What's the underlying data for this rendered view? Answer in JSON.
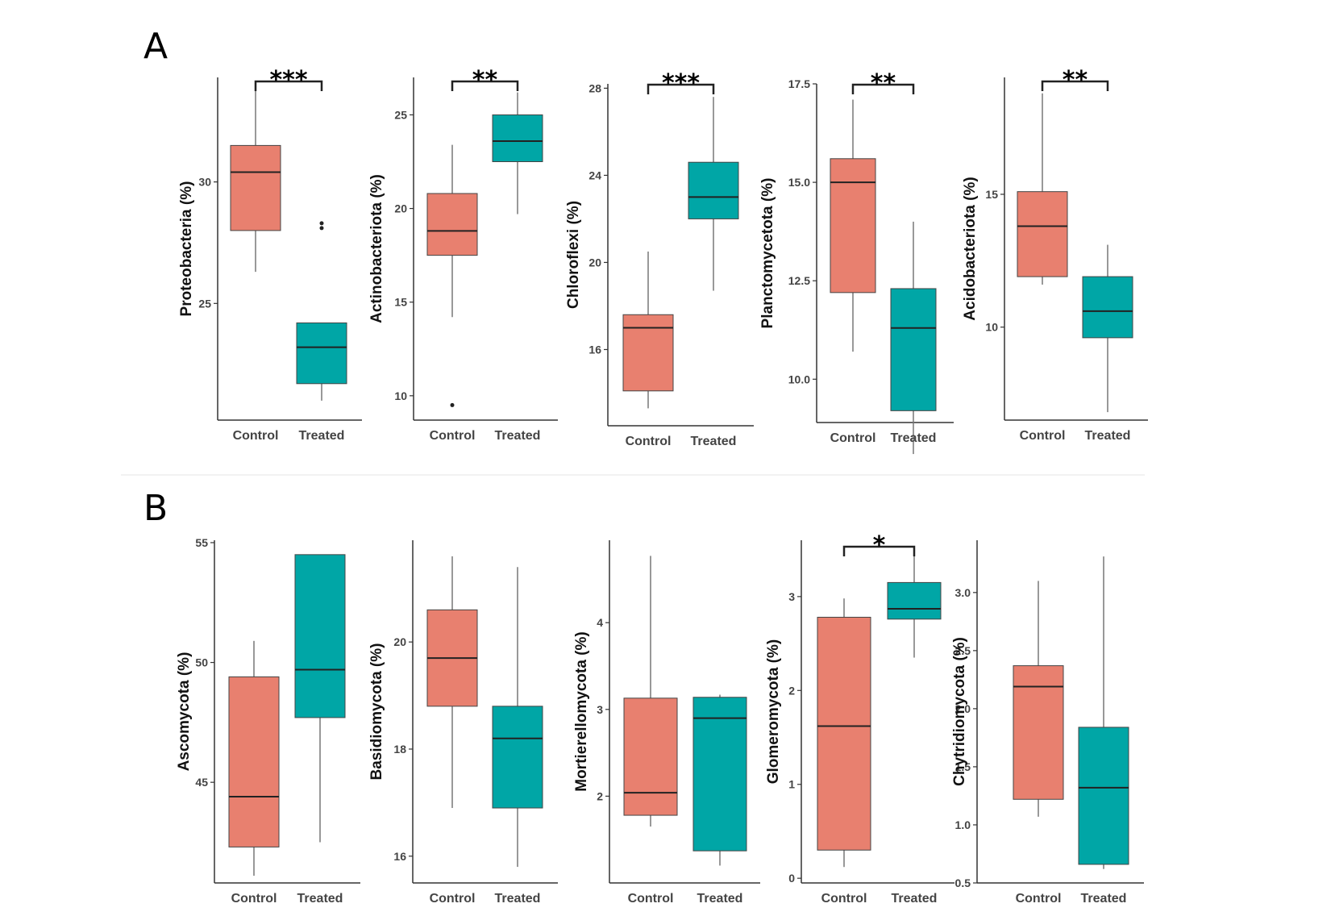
{
  "panels": [
    {
      "label": "A"
    },
    {
      "label": "B"
    }
  ],
  "chart_data": [
    {
      "type": "box",
      "panel": "A",
      "ylabel": "Proteobacteria (%)",
      "categories": [
        "Control",
        "Treated"
      ],
      "yticks": [
        25,
        30
      ],
      "ylim": [
        20.2,
        34.3
      ],
      "boxes": [
        {
          "category": "Control",
          "fill": "#e8806f",
          "whisker_low": 26.3,
          "q1": 28.0,
          "median": 30.4,
          "q3": 31.5,
          "whisker_high": 33.9,
          "outliers": []
        },
        {
          "category": "Treated",
          "fill": "#00a6a6",
          "whisker_low": 21.0,
          "q1": 21.7,
          "median": 23.2,
          "q3": 24.2,
          "whisker_high": 24.2,
          "outliers": [
            28.1,
            28.3
          ]
        }
      ],
      "significance": "***"
    },
    {
      "type": "box",
      "panel": "A",
      "ylabel": "Actinobacteriota (%)",
      "categories": [
        "Control",
        "Treated"
      ],
      "yticks": [
        10,
        15,
        20,
        25
      ],
      "ylim": [
        8.7,
        27.0
      ],
      "boxes": [
        {
          "category": "Control",
          "fill": "#e8806f",
          "whisker_low": 14.2,
          "q1": 17.5,
          "median": 18.8,
          "q3": 20.8,
          "whisker_high": 23.4,
          "outliers": [
            9.5
          ]
        },
        {
          "category": "Treated",
          "fill": "#00a6a6",
          "whisker_low": 19.7,
          "q1": 22.5,
          "median": 23.6,
          "q3": 25.0,
          "whisker_high": 26.2,
          "outliers": []
        }
      ],
      "significance": "**"
    },
    {
      "type": "box",
      "panel": "A",
      "ylabel": "Chloroflexi (%)",
      "categories": [
        "Control",
        "Treated"
      ],
      "yticks": [
        16,
        20,
        24,
        28
      ],
      "ylim": [
        12.5,
        28.2
      ],
      "boxes": [
        {
          "category": "Control",
          "fill": "#e8806f",
          "whisker_low": 13.3,
          "q1": 14.1,
          "median": 17.0,
          "q3": 17.6,
          "whisker_high": 20.5,
          "outliers": []
        },
        {
          "category": "Treated",
          "fill": "#00a6a6",
          "whisker_low": 18.7,
          "q1": 22.0,
          "median": 23.0,
          "q3": 24.6,
          "whisker_high": 27.6,
          "outliers": []
        }
      ],
      "significance": "***"
    },
    {
      "type": "box",
      "panel": "A",
      "ylabel": "Planctomycetota (%)",
      "categories": [
        "Control",
        "Treated"
      ],
      "yticks": [
        "10.0",
        "12.5",
        "15.0",
        "17.5"
      ],
      "ylim": [
        8.9,
        17.5
      ],
      "boxes": [
        {
          "category": "Control",
          "fill": "#e8806f",
          "whisker_low": 10.7,
          "q1": 12.2,
          "median": 15.0,
          "q3": 15.6,
          "whisker_high": 17.1,
          "outliers": []
        },
        {
          "category": "Treated",
          "fill": "#00a6a6",
          "whisker_low": 8.1,
          "q1": 9.2,
          "median": 11.3,
          "q3": 12.3,
          "whisker_high": 14.0,
          "outliers": []
        }
      ],
      "significance": "**"
    },
    {
      "type": "box",
      "panel": "A",
      "ylabel": "Acidobacteriota (%)",
      "categories": [
        "Control",
        "Treated"
      ],
      "yticks": [
        10,
        15
      ],
      "ylim": [
        6.5,
        19.4
      ],
      "boxes": [
        {
          "category": "Control",
          "fill": "#e8806f",
          "whisker_low": 11.6,
          "q1": 11.9,
          "median": 13.8,
          "q3": 15.1,
          "whisker_high": 18.8,
          "outliers": []
        },
        {
          "category": "Treated",
          "fill": "#00a6a6",
          "whisker_low": 6.8,
          "q1": 9.6,
          "median": 10.6,
          "q3": 11.9,
          "whisker_high": 13.1,
          "outliers": []
        }
      ],
      "significance": "**"
    },
    {
      "type": "box",
      "panel": "B",
      "ylabel": "Ascomycota (%)",
      "categories": [
        "Control",
        "Treated"
      ],
      "yticks": [
        45,
        50,
        55
      ],
      "ylim": [
        40.8,
        55.1
      ],
      "boxes": [
        {
          "category": "Control",
          "fill": "#e8806f",
          "whisker_low": 41.1,
          "q1": 42.3,
          "median": 44.4,
          "q3": 49.4,
          "whisker_high": 50.9,
          "outliers": []
        },
        {
          "category": "Treated",
          "fill": "#00a6a6",
          "whisker_low": 42.5,
          "q1": 47.7,
          "median": 49.7,
          "q3": 54.5,
          "whisker_high": 54.5,
          "outliers": []
        }
      ],
      "significance": ""
    },
    {
      "type": "box",
      "panel": "B",
      "ylabel": "Basidiomycota (%)",
      "categories": [
        "Control",
        "Treated"
      ],
      "yticks": [
        16,
        18,
        20
      ],
      "ylim": [
        15.5,
        21.9
      ],
      "boxes": [
        {
          "category": "Control",
          "fill": "#e8806f",
          "whisker_low": 16.9,
          "q1": 18.8,
          "median": 19.7,
          "q3": 20.6,
          "whisker_high": 21.6,
          "outliers": []
        },
        {
          "category": "Treated",
          "fill": "#00a6a6",
          "whisker_low": 15.8,
          "q1": 16.9,
          "median": 18.2,
          "q3": 18.8,
          "whisker_high": 21.4,
          "outliers": []
        }
      ],
      "significance": ""
    },
    {
      "type": "box",
      "panel": "B",
      "ylabel": "Mortierellomycota (%)",
      "categories": [
        "Control",
        "Treated"
      ],
      "yticks": [
        2,
        3,
        4
      ],
      "ylim": [
        1.0,
        4.95
      ],
      "boxes": [
        {
          "category": "Control",
          "fill": "#e8806f",
          "whisker_low": 1.65,
          "q1": 1.78,
          "median": 2.04,
          "q3": 3.13,
          "whisker_high": 4.77,
          "outliers": []
        },
        {
          "category": "Treated",
          "fill": "#00a6a6",
          "whisker_low": 1.2,
          "q1": 1.37,
          "median": 2.9,
          "q3": 3.14,
          "whisker_high": 3.17,
          "outliers": []
        }
      ],
      "significance": ""
    },
    {
      "type": "box",
      "panel": "B",
      "ylabel": "Glomeromycota (%)",
      "categories": [
        "Control",
        "Treated"
      ],
      "yticks": [
        0,
        1,
        2,
        3
      ],
      "ylim": [
        -0.05,
        3.6
      ],
      "boxes": [
        {
          "category": "Control",
          "fill": "#e8806f",
          "whisker_low": 0.12,
          "q1": 0.3,
          "median": 1.62,
          "q3": 2.78,
          "whisker_high": 2.98,
          "outliers": []
        },
        {
          "category": "Treated",
          "fill": "#00a6a6",
          "whisker_low": 2.35,
          "q1": 2.76,
          "median": 2.87,
          "q3": 3.15,
          "whisker_high": 3.45,
          "outliers": []
        }
      ],
      "significance": "*"
    },
    {
      "type": "box",
      "panel": "B",
      "ylabel": "Chytridiomycota (%)",
      "categories": [
        "Control",
        "Treated"
      ],
      "yticks": [
        "0.5",
        "1.0",
        "1.5",
        "2.0",
        "2.5",
        "3.0"
      ],
      "ylim": [
        0.5,
        3.45
      ],
      "boxes": [
        {
          "category": "Control",
          "fill": "#e8806f",
          "whisker_low": 1.07,
          "q1": 1.22,
          "median": 2.19,
          "q3": 2.37,
          "whisker_high": 3.1,
          "outliers": []
        },
        {
          "category": "Treated",
          "fill": "#00a6a6",
          "whisker_low": 0.62,
          "q1": 0.66,
          "median": 1.32,
          "q3": 1.84,
          "whisker_high": 3.31,
          "outliers": []
        }
      ],
      "significance": ""
    }
  ]
}
